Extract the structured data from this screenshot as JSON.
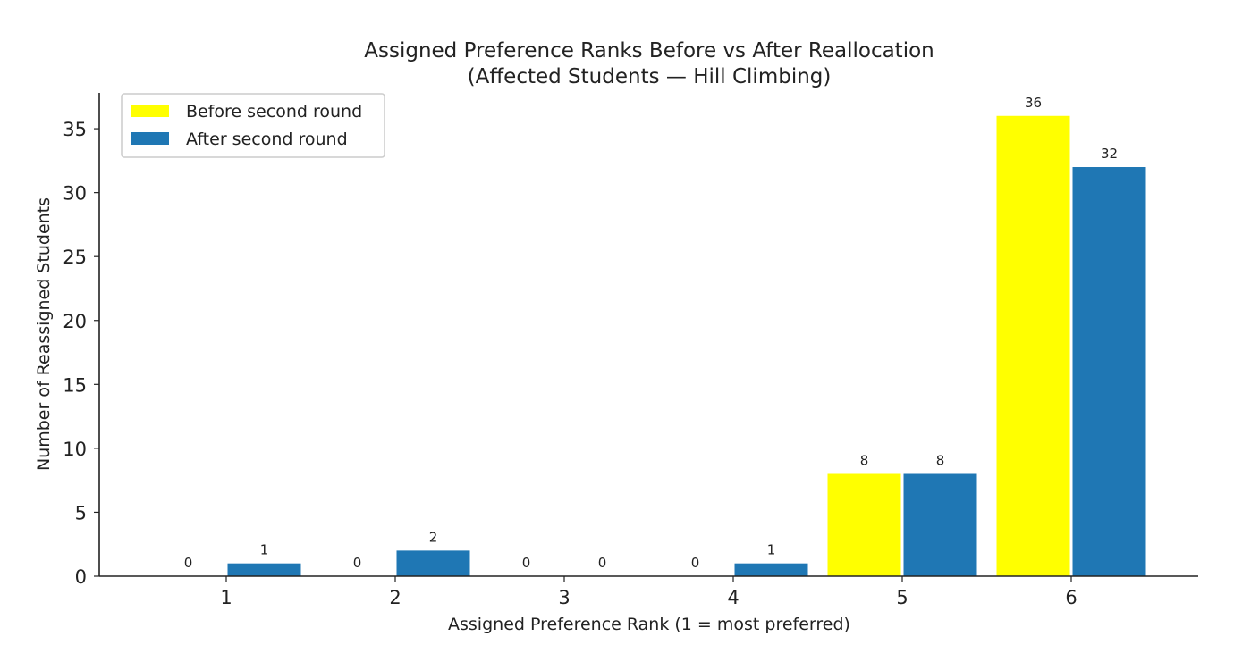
{
  "chart_data": {
    "type": "bar",
    "title": "Assigned Preference Ranks Before vs After Reallocation",
    "subtitle": "(Affected Students — Hill Climbing)",
    "xlabel": "Assigned Preference Rank (1 = most preferred)",
    "ylabel": "Number of Reassigned Students",
    "categories": [
      "1",
      "2",
      "3",
      "4",
      "5",
      "6"
    ],
    "series": [
      {
        "name": "Before second round",
        "color": "#ffff00",
        "values": [
          0,
          0,
          0,
          0,
          8,
          36
        ]
      },
      {
        "name": "After second round",
        "color": "#1f77b4",
        "values": [
          1,
          2,
          0,
          1,
          8,
          32
        ]
      }
    ],
    "ylim": [
      0,
      37.8
    ],
    "yticks": [
      0,
      5,
      10,
      15,
      20,
      25,
      30,
      35
    ],
    "grid": false,
    "legend_position": "top-left"
  }
}
